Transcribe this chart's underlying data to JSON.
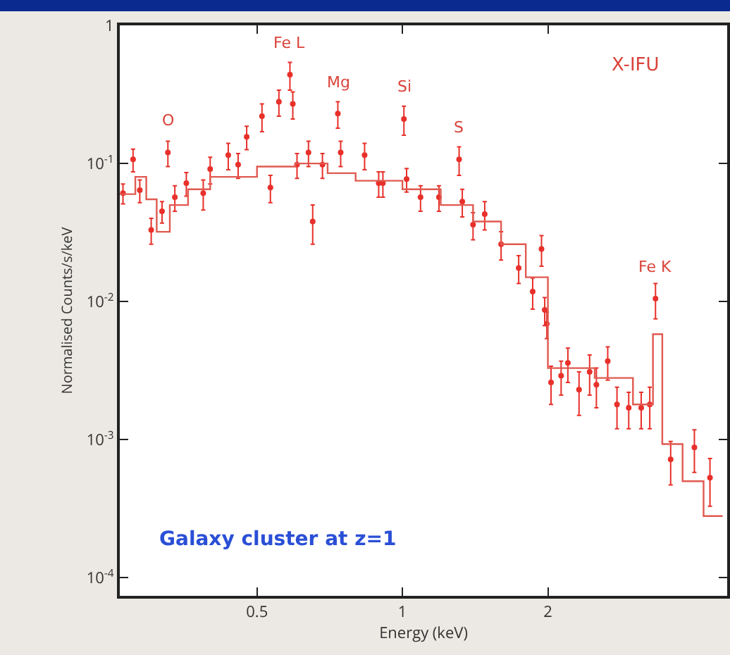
{
  "chart_data": {
    "type": "scatter",
    "xlabel": "Energy (keV)",
    "ylabel": "Normalised Counts/s/keV",
    "log": "xy",
    "xlim": [
      0.26,
      4.7
    ],
    "ylim": [
      7.4e-05,
      1
    ],
    "xticks": [
      0.5,
      1,
      2
    ],
    "yticks": [
      {
        "value": 0.0001,
        "label": "10$^{-4}$"
      },
      {
        "value": 0.001,
        "label": "10$^{-3}$"
      },
      {
        "value": 0.01,
        "label": "10$^{-2}$"
      },
      {
        "value": 0.1,
        "label": "10$^{-1}$"
      },
      1
    ],
    "grid": false,
    "marker": "circle",
    "series": [
      {
        "color": "#e8302a",
        "x": [
          0.264,
          0.277,
          0.286,
          0.302,
          0.318,
          0.327,
          0.338,
          0.357,
          0.387,
          0.4,
          0.436,
          0.457,
          0.476,
          0.512,
          0.533,
          0.555,
          0.585,
          0.593,
          0.605,
          0.639,
          0.652,
          0.683,
          0.735,
          0.745,
          0.835,
          0.893,
          0.911,
          1.007,
          1.02,
          1.09,
          1.19,
          1.31,
          1.33,
          1.4,
          1.48,
          1.6,
          1.74,
          1.86,
          1.94,
          1.97,
          1.99,
          2.03,
          2.13,
          2.2,
          2.32,
          2.44,
          2.52,
          2.66,
          2.78,
          2.94,
          3.12,
          3.25,
          3.34,
          3.59,
          4.02,
          4.33
        ],
        "values": [
          0.061,
          0.107,
          0.064,
          0.033,
          0.045,
          0.12,
          0.057,
          0.072,
          0.061,
          0.091,
          0.115,
          0.098,
          0.156,
          0.22,
          0.067,
          0.28,
          0.44,
          0.27,
          0.098,
          0.12,
          0.038,
          0.098,
          0.23,
          0.12,
          0.115,
          0.072,
          0.072,
          0.21,
          0.077,
          0.057,
          0.057,
          0.107,
          0.053,
          0.036,
          0.043,
          0.026,
          0.0175,
          0.0118,
          0.024,
          0.0087,
          0.0069,
          0.0026,
          0.0029,
          0.0036,
          0.0023,
          0.0031,
          0.0025,
          0.0037,
          0.0018,
          0.0017,
          0.0017,
          0.0018,
          0.0105,
          0.00072,
          0.00088,
          0.00053
        ],
        "errors": [
          0.01,
          0.02,
          0.012,
          0.007,
          0.008,
          0.025,
          0.012,
          0.014,
          0.015,
          0.02,
          0.025,
          0.02,
          0.03,
          0.05,
          0.015,
          0.06,
          0.1,
          0.06,
          0.02,
          0.025,
          0.012,
          0.02,
          0.05,
          0.025,
          0.025,
          0.015,
          0.015,
          0.05,
          0.015,
          0.012,
          0.012,
          0.025,
          0.012,
          0.008,
          0.01,
          0.006,
          0.004,
          0.003,
          0.006,
          0.002,
          0.0015,
          0.0008,
          0.0008,
          0.001,
          0.0008,
          0.001,
          0.0008,
          0.001,
          0.0006,
          0.0005,
          0.0005,
          0.0006,
          0.003,
          0.00025,
          0.0003,
          0.0002
        ]
      },
      {
        "type": "step",
        "color": "#e05a50",
        "marker": "none",
        "x": [
          0.26,
          0.28,
          0.295,
          0.31,
          0.33,
          0.36,
          0.4,
          0.5,
          0.6,
          0.7,
          0.8,
          1.0,
          1.2,
          1.4,
          1.6,
          1.8,
          2.0,
          2.5,
          3.0,
          3.3,
          3.45,
          3.8,
          4.2,
          4.6
        ],
        "values": [
          0.06,
          0.08,
          0.055,
          0.032,
          0.05,
          0.065,
          0.08,
          0.095,
          0.1,
          0.085,
          0.075,
          0.065,
          0.05,
          0.038,
          0.026,
          0.015,
          0.0033,
          0.0028,
          0.0018,
          0.0058,
          0.00093,
          0.0005,
          0.00028,
          0.00028
        ]
      }
    ],
    "annotations": [
      {
        "text": "O",
        "x": 0.327,
        "y": 0.12
      },
      {
        "text": "Fe L",
        "x": 0.585,
        "y": 0.44
      },
      {
        "text": "Mg",
        "x": 0.735,
        "y": 0.23
      },
      {
        "text": "Si",
        "x": 1.007,
        "y": 0.21
      },
      {
        "text": "S",
        "x": 1.31,
        "y": 0.107
      },
      {
        "text": "Fe K",
        "x": 3.34,
        "y": 0.0105
      },
      "X-IFU",
      "Galaxy cluster at z=1"
    ]
  }
}
